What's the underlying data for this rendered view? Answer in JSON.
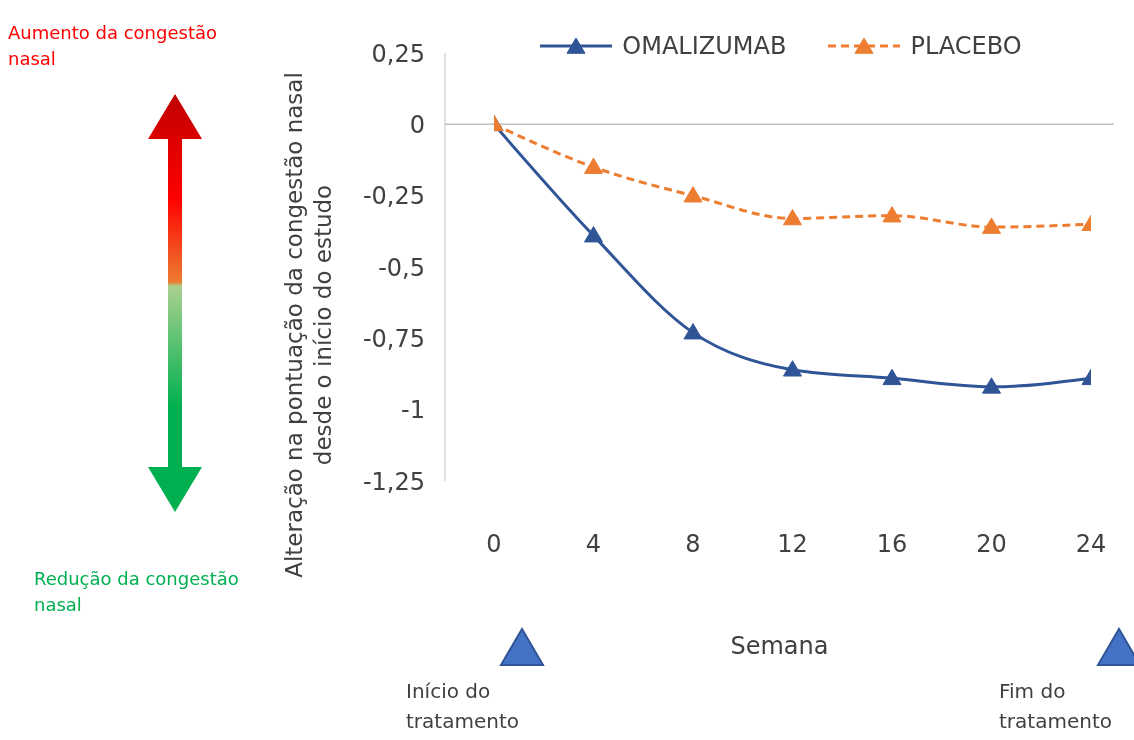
{
  "chart_data": {
    "type": "line",
    "ylabel": "Alteração na pontuação da congestão nasal desde o início do estudo",
    "xlabel": "Semana",
    "x": [
      0,
      4,
      8,
      12,
      16,
      20,
      24
    ],
    "xlim": [
      0,
      24
    ],
    "xticks": [
      0,
      4,
      8,
      12,
      16,
      20,
      24
    ],
    "ylim": [
      -1.25,
      0.25
    ],
    "yticks": [
      {
        "value": 0.25,
        "label": "0,25"
      },
      0,
      {
        "value": -0.25,
        "label": "-0,25"
      },
      {
        "value": -0.5,
        "label": "-0,5"
      },
      {
        "value": -0.75,
        "label": "-0,75"
      },
      -1,
      {
        "value": -1.25,
        "label": "-1,25"
      }
    ],
    "series": [
      {
        "name": "OMALIZUMAB",
        "color": "#2f5597",
        "line_style": "solid",
        "values": [
          0,
          -0.39,
          -0.73,
          -0.86,
          -0.89,
          -0.92,
          -0.89
        ]
      },
      {
        "name": "PLACEBO",
        "color": "#ed7d31",
        "line_style": "dashed",
        "values": [
          0,
          -0.15,
          -0.25,
          -0.33,
          -0.32,
          -0.36,
          -0.35
        ]
      }
    ],
    "marker": "triangle",
    "legend": "top",
    "ref_lines": [
      {
        "axis": "y",
        "value": 0,
        "color": "#bfbfbf"
      }
    ],
    "annotations": [
      "Aumento da congestão nasal",
      "Redução da congestão nasal",
      "Início do tratamento",
      "Fim do tratamento"
    ]
  }
}
